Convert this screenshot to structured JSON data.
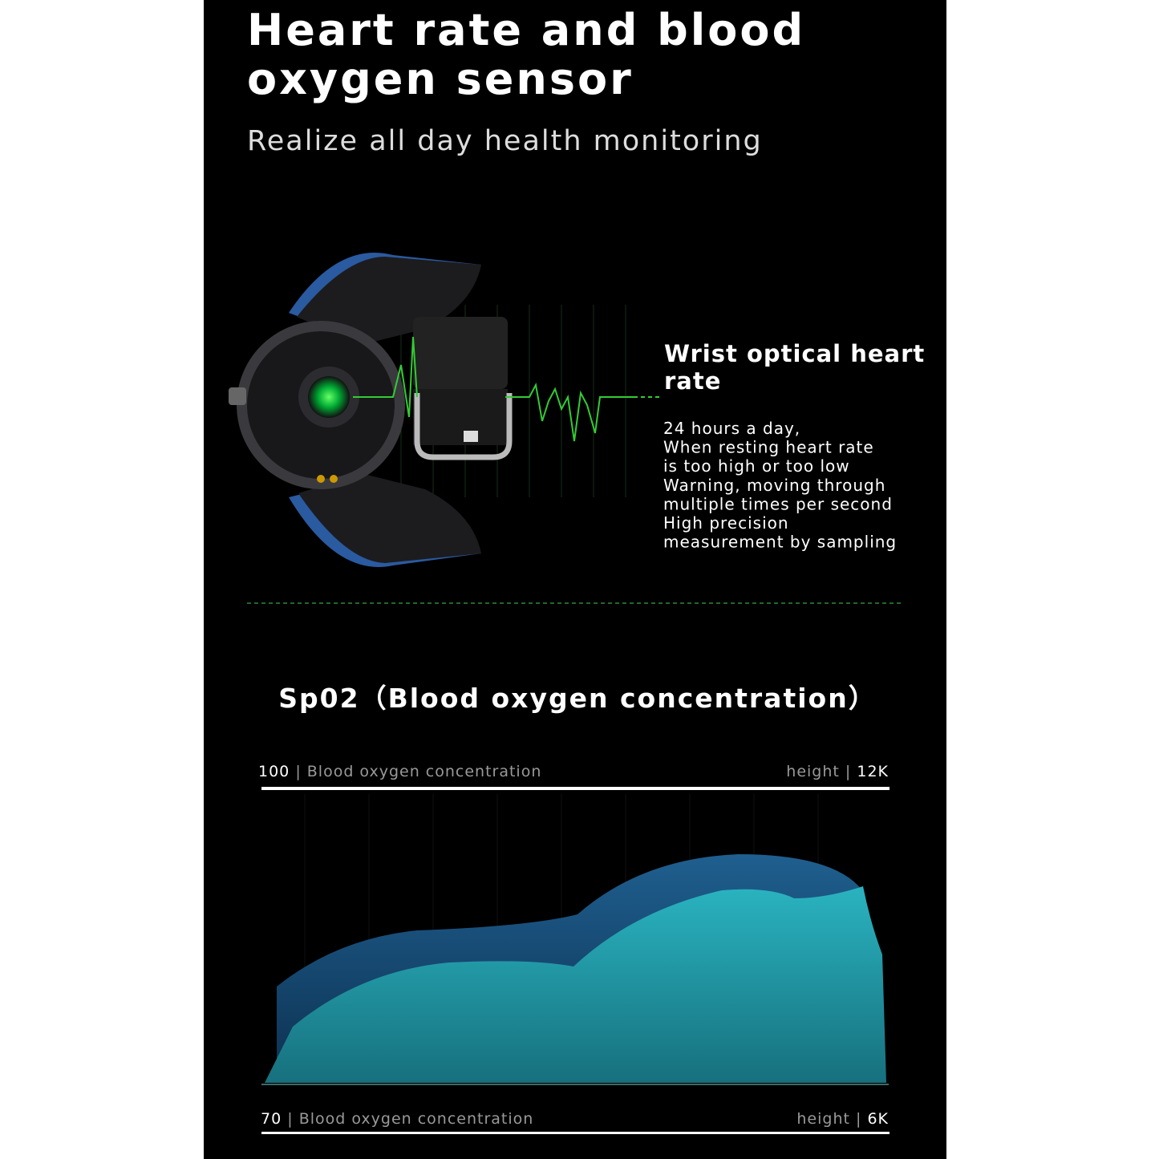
{
  "header": {
    "title_lines": [
      "Heart rate and blood",
      "oxygen sensor"
    ],
    "subtitle": "Realize all day health monitoring"
  },
  "feature": {
    "heading_lines": [
      "Wrist optical heart",
      "rate"
    ],
    "body_lines": [
      "24 hours a day,",
      "When resting heart rate",
      "is too high or too low",
      "Warning, moving through",
      "multiple times per second",
      "High precision",
      "measurement by sampling"
    ]
  },
  "section": {
    "title": "Sp02（Blood oxygen concentration）",
    "separator": "|",
    "top_left": {
      "value": "100",
      "label": "Blood oxygen concentration"
    },
    "top_right": {
      "label": "height",
      "value": "12K"
    },
    "bottom_left": {
      "value": "70",
      "label": "Blood oxygen concentration"
    },
    "bottom_right": {
      "label": "height",
      "value": "6K"
    }
  }
}
